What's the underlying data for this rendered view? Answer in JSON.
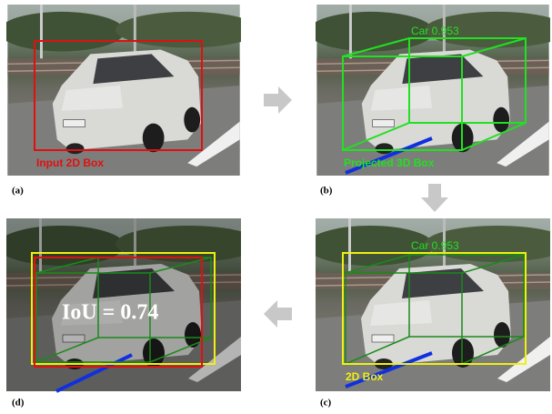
{
  "panels": [
    {
      "caption": "(a)",
      "label": "Input 2D Box"
    },
    {
      "caption": "(b)",
      "label": "Projected 3D Box",
      "score": "Car 0.953"
    },
    {
      "caption": "(c)",
      "label": "2D Box",
      "score": "Car 0.953"
    },
    {
      "caption": "(d)",
      "label": "IoU = 0.74"
    }
  ]
}
